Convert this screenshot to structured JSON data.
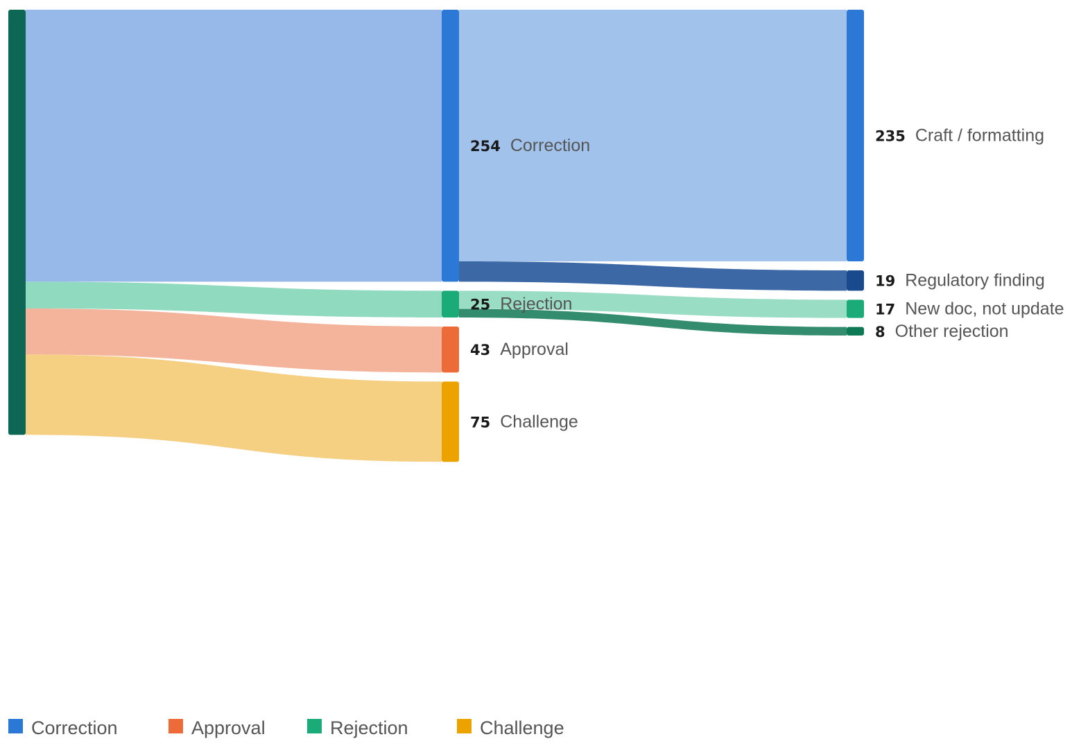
{
  "chart_data": {
    "type": "sankey",
    "nodes": [
      {
        "id": "root",
        "label": "",
        "value": null,
        "column": 0,
        "color": "#0e6655"
      },
      {
        "id": "correction",
        "label": "Correction",
        "value": 254,
        "column": 1,
        "color": "#2b78d6"
      },
      {
        "id": "rejection",
        "label": "Rejection",
        "value": 25,
        "column": 1,
        "color": "#1aab78"
      },
      {
        "id": "approval",
        "label": "Approval",
        "value": 43,
        "column": 1,
        "color": "#ec6b38"
      },
      {
        "id": "challenge",
        "label": "Challenge",
        "value": 75,
        "column": 1,
        "color": "#eca300"
      },
      {
        "id": "craft",
        "label": "Craft / formatting",
        "value": 235,
        "column": 2,
        "color": "#2b78d6"
      },
      {
        "id": "regulatory",
        "label": "Regulatory finding",
        "value": 19,
        "column": 2,
        "color": "#1a4a8e"
      },
      {
        "id": "newdoc",
        "label": "New doc, not update",
        "value": 17,
        "column": 2,
        "color": "#1aab78"
      },
      {
        "id": "otherrej",
        "label": "Other rejection",
        "value": 8,
        "column": 2,
        "color": "#0e7a55"
      }
    ],
    "links": [
      {
        "source": "root",
        "target": "correction",
        "value": 254,
        "color": "#97b9e9"
      },
      {
        "source": "root",
        "target": "rejection",
        "value": 25,
        "color": "#90dac0"
      },
      {
        "source": "root",
        "target": "approval",
        "value": 43,
        "color": "#f4b49b"
      },
      {
        "source": "root",
        "target": "challenge",
        "value": 75,
        "color": "#f5d083"
      },
      {
        "source": "correction",
        "target": "craft",
        "value": 235,
        "color": "#a1c2eb"
      },
      {
        "source": "correction",
        "target": "regulatory",
        "value": 19,
        "color": "#3c68a6"
      },
      {
        "source": "rejection",
        "target": "newdoc",
        "value": 17,
        "color": "#9addc5"
      },
      {
        "source": "rejection",
        "target": "otherrej",
        "value": 8,
        "color": "#348c6e"
      }
    ],
    "legend": [
      {
        "label": "Correction",
        "color": "#2b78d6"
      },
      {
        "label": "Approval",
        "color": "#ec6b38"
      },
      {
        "label": "Rejection",
        "color": "#1aab78"
      },
      {
        "label": "Challenge",
        "color": "#eca300"
      }
    ],
    "legend_position": "bottom-left"
  }
}
